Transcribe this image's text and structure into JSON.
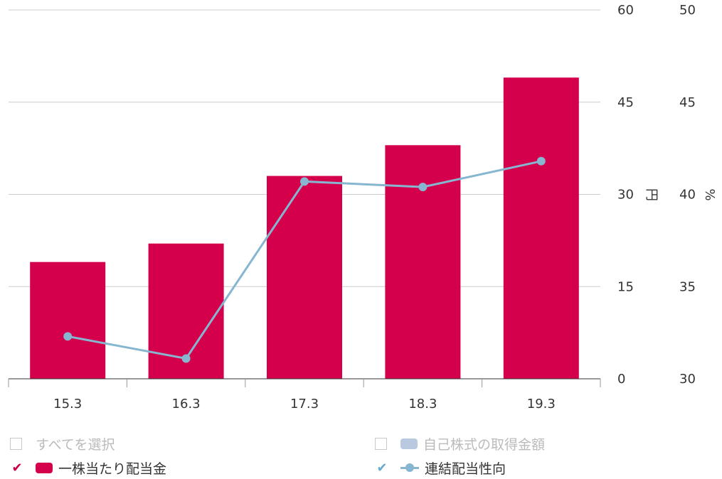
{
  "colors": {
    "bar": "#d4004b",
    "line": "#86b6d0",
    "grid": "#cccccc",
    "axis": "#333333",
    "disabled_swatch": "#b9c9e0",
    "disabled_text": "#bbbbbb",
    "check_pink": "#c8004a",
    "check_blue": "#6aa8cc"
  },
  "chart_data": {
    "type": "bar+line",
    "categories": [
      "15.3",
      "16.3",
      "17.3",
      "18.3",
      "19.3"
    ],
    "series": [
      {
        "name": "一株当たり配当金",
        "type": "bar",
        "axis": "left",
        "values": [
          19,
          22,
          33,
          38,
          49
        ]
      },
      {
        "name": "連結配当性向",
        "type": "line",
        "axis": "right",
        "values": [
          32.3,
          31.1,
          40.7,
          40.4,
          41.8
        ]
      }
    ],
    "y_left": {
      "label": "円",
      "min": 0,
      "max": 60,
      "ticks": [
        "0",
        "15",
        "30",
        "45",
        "60"
      ]
    },
    "y_right": {
      "label": "%",
      "min": 30,
      "max": 50,
      "ticks": [
        "30",
        "35",
        "40",
        "45",
        "50"
      ]
    },
    "grid": true
  },
  "legend": {
    "select_all": "すべてを選択",
    "treasury": "自己株式の取得金額",
    "dividend": "一株当たり配当金",
    "payout": "連結配当性向"
  }
}
